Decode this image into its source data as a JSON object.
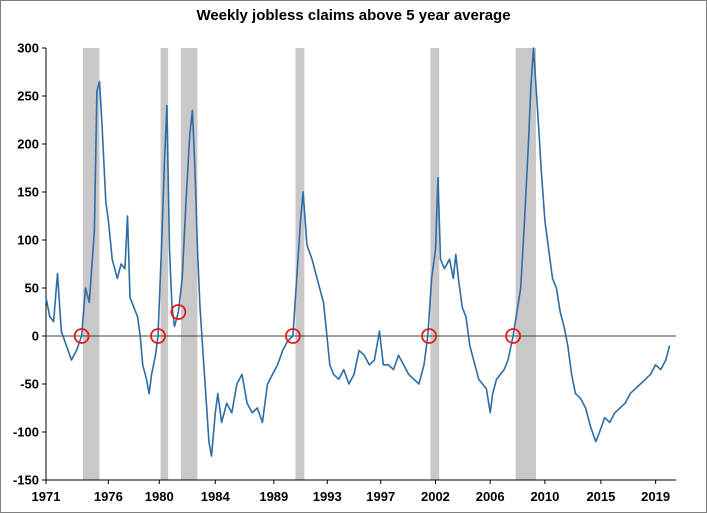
{
  "chart_data": {
    "type": "line",
    "title": "Weekly jobless claims above 5 year average",
    "xlabel": "",
    "ylabel": "",
    "xlim": [
      1971.0,
      2020.5
    ],
    "ylim": [
      -150,
      300
    ],
    "y_ticks": [
      300,
      250,
      200,
      150,
      100,
      50,
      0,
      -50,
      -100,
      -150
    ],
    "x_ticks": [
      {
        "label": "1971",
        "x": 1971.0
      },
      {
        "label": "1976",
        "x": 1975.9
      },
      {
        "label": "1980",
        "x": 1979.9
      },
      {
        "label": "1984",
        "x": 1984.3
      },
      {
        "label": "1989",
        "x": 1988.9
      },
      {
        "label": "1993",
        "x": 1993.1
      },
      {
        "label": "1997",
        "x": 1997.3
      },
      {
        "label": "2002",
        "x": 2001.6
      },
      {
        "label": "2006",
        "x": 2005.9
      },
      {
        "label": "2010",
        "x": 2010.2
      },
      {
        "label": "2015",
        "x": 2014.6
      },
      {
        "label": "2019",
        "x": 2018.9
      }
    ],
    "recessions": [
      [
        1973.9,
        1975.2
      ],
      [
        1980.0,
        1980.6
      ],
      [
        1981.6,
        1982.9
      ],
      [
        1990.6,
        1991.3
      ],
      [
        2001.2,
        2001.9
      ],
      [
        2007.9,
        2009.5
      ]
    ],
    "markers": [
      {
        "x": 1973.8,
        "y": 0
      },
      {
        "x": 1979.8,
        "y": 0
      },
      {
        "x": 1981.4,
        "y": 25
      },
      {
        "x": 1990.4,
        "y": 0
      },
      {
        "x": 2001.1,
        "y": 0
      },
      {
        "x": 2007.7,
        "y": 0
      }
    ],
    "series": [
      {
        "color": "#2e6ca6",
        "points": [
          [
            1971.0,
            40
          ],
          [
            1971.3,
            20
          ],
          [
            1971.6,
            15
          ],
          [
            1971.9,
            65
          ],
          [
            1972.2,
            5
          ],
          [
            1972.6,
            -10
          ],
          [
            1973.0,
            -25
          ],
          [
            1973.4,
            -15
          ],
          [
            1973.8,
            0
          ],
          [
            1974.1,
            50
          ],
          [
            1974.4,
            35
          ],
          [
            1974.8,
            110
          ],
          [
            1975.0,
            255
          ],
          [
            1975.2,
            265
          ],
          [
            1975.4,
            220
          ],
          [
            1975.7,
            140
          ],
          [
            1975.9,
            120
          ],
          [
            1976.2,
            80
          ],
          [
            1976.6,
            60
          ],
          [
            1976.9,
            75
          ],
          [
            1977.2,
            70
          ],
          [
            1977.4,
            125
          ],
          [
            1977.6,
            40
          ],
          [
            1977.9,
            30
          ],
          [
            1978.2,
            20
          ],
          [
            1978.4,
            0
          ],
          [
            1978.6,
            -30
          ],
          [
            1978.9,
            -45
          ],
          [
            1979.1,
            -60
          ],
          [
            1979.3,
            -40
          ],
          [
            1979.6,
            -20
          ],
          [
            1979.8,
            0
          ],
          [
            1980.1,
            100
          ],
          [
            1980.3,
            180
          ],
          [
            1980.5,
            240
          ],
          [
            1980.7,
            90
          ],
          [
            1980.9,
            30
          ],
          [
            1981.1,
            10
          ],
          [
            1981.4,
            25
          ],
          [
            1981.7,
            60
          ],
          [
            1982.0,
            140
          ],
          [
            1982.3,
            210
          ],
          [
            1982.5,
            235
          ],
          [
            1982.7,
            175
          ],
          [
            1982.9,
            90
          ],
          [
            1983.1,
            30
          ],
          [
            1983.4,
            -30
          ],
          [
            1983.6,
            -70
          ],
          [
            1983.8,
            -110
          ],
          [
            1984.0,
            -125
          ],
          [
            1984.3,
            -80
          ],
          [
            1984.5,
            -60
          ],
          [
            1984.8,
            -90
          ],
          [
            1985.2,
            -70
          ],
          [
            1985.6,
            -80
          ],
          [
            1986.0,
            -50
          ],
          [
            1986.4,
            -40
          ],
          [
            1986.8,
            -70
          ],
          [
            1987.2,
            -80
          ],
          [
            1987.6,
            -75
          ],
          [
            1988.0,
            -90
          ],
          [
            1988.4,
            -50
          ],
          [
            1988.8,
            -40
          ],
          [
            1989.2,
            -30
          ],
          [
            1989.6,
            -15
          ],
          [
            1990.0,
            -5
          ],
          [
            1990.4,
            0
          ],
          [
            1990.7,
            60
          ],
          [
            1991.0,
            120
          ],
          [
            1991.2,
            150
          ],
          [
            1991.5,
            95
          ],
          [
            1991.9,
            80
          ],
          [
            1992.2,
            65
          ],
          [
            1992.5,
            50
          ],
          [
            1992.8,
            35
          ],
          [
            1993.0,
            10
          ],
          [
            1993.3,
            -30
          ],
          [
            1993.6,
            -40
          ],
          [
            1994.0,
            -45
          ],
          [
            1994.4,
            -35
          ],
          [
            1994.8,
            -50
          ],
          [
            1995.2,
            -40
          ],
          [
            1995.6,
            -15
          ],
          [
            1996.0,
            -20
          ],
          [
            1996.4,
            -30
          ],
          [
            1996.8,
            -25
          ],
          [
            1997.2,
            5
          ],
          [
            1997.5,
            -30
          ],
          [
            1997.9,
            -30
          ],
          [
            1998.3,
            -35
          ],
          [
            1998.7,
            -20
          ],
          [
            1999.1,
            -30
          ],
          [
            1999.5,
            -40
          ],
          [
            1999.9,
            -45
          ],
          [
            2000.3,
            -50
          ],
          [
            2000.7,
            -30
          ],
          [
            2001.0,
            0
          ],
          [
            2001.3,
            60
          ],
          [
            2001.6,
            90
          ],
          [
            2001.8,
            165
          ],
          [
            2002.0,
            80
          ],
          [
            2002.3,
            70
          ],
          [
            2002.7,
            80
          ],
          [
            2003.0,
            60
          ],
          [
            2003.2,
            85
          ],
          [
            2003.4,
            60
          ],
          [
            2003.7,
            30
          ],
          [
            2004.0,
            20
          ],
          [
            2004.3,
            -10
          ],
          [
            2004.7,
            -30
          ],
          [
            2005.0,
            -45
          ],
          [
            2005.3,
            -50
          ],
          [
            2005.6,
            -55
          ],
          [
            2005.9,
            -80
          ],
          [
            2006.1,
            -60
          ],
          [
            2006.4,
            -45
          ],
          [
            2006.7,
            -40
          ],
          [
            2007.0,
            -35
          ],
          [
            2007.3,
            -25
          ],
          [
            2007.7,
            0
          ],
          [
            2008.0,
            25
          ],
          [
            2008.3,
            50
          ],
          [
            2008.6,
            120
          ],
          [
            2008.9,
            200
          ],
          [
            2009.1,
            260
          ],
          [
            2009.3,
            300
          ],
          [
            2009.5,
            260
          ],
          [
            2009.7,
            220
          ],
          [
            2009.9,
            175
          ],
          [
            2010.2,
            120
          ],
          [
            2010.5,
            90
          ],
          [
            2010.8,
            60
          ],
          [
            2011.1,
            50
          ],
          [
            2011.4,
            25
          ],
          [
            2011.7,
            10
          ],
          [
            2012.0,
            -10
          ],
          [
            2012.3,
            -40
          ],
          [
            2012.6,
            -60
          ],
          [
            2013.0,
            -65
          ],
          [
            2013.4,
            -75
          ],
          [
            2013.8,
            -95
          ],
          [
            2014.2,
            -110
          ],
          [
            2014.5,
            -100
          ],
          [
            2014.9,
            -85
          ],
          [
            2015.3,
            -90
          ],
          [
            2015.7,
            -80
          ],
          [
            2016.1,
            -75
          ],
          [
            2016.5,
            -70
          ],
          [
            2016.9,
            -60
          ],
          [
            2017.3,
            -55
          ],
          [
            2017.7,
            -50
          ],
          [
            2018.1,
            -45
          ],
          [
            2018.5,
            -40
          ],
          [
            2018.9,
            -30
          ],
          [
            2019.3,
            -35
          ],
          [
            2019.7,
            -25
          ],
          [
            2020.0,
            -10
          ]
        ]
      }
    ]
  }
}
